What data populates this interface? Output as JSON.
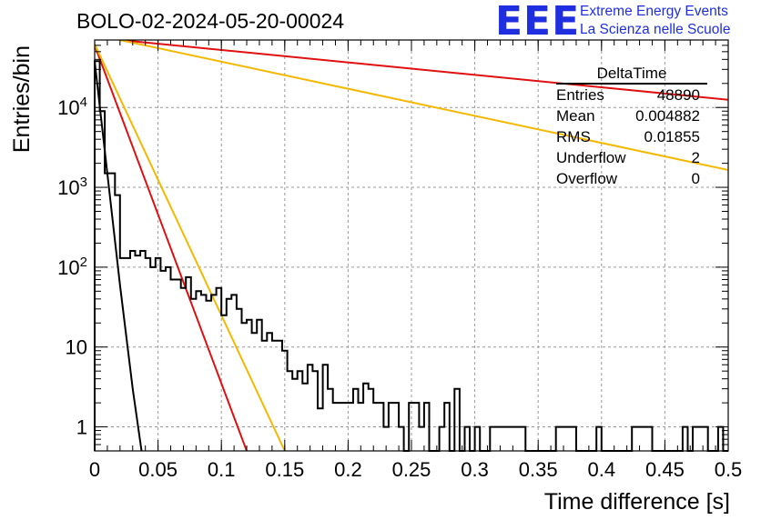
{
  "title": "BOLO-02-2024-05-20-00024",
  "logo": {
    "letters": "EEE",
    "line1": "Extreme Energy Events",
    "line2": "La Scienza nelle Scuole",
    "color": "#1f2fe0"
  },
  "stats_box": {
    "name": "DeltaTime",
    "rows": [
      {
        "label": "Entries",
        "value": "48890"
      },
      {
        "label": "Mean",
        "value": "0.004882"
      },
      {
        "label": "RMS",
        "value": "0.01855"
      },
      {
        "label": "Underflow",
        "value": "2"
      },
      {
        "label": "Overflow",
        "value": "0"
      }
    ]
  },
  "chart_data": {
    "type": "histogram",
    "title": "BOLO-02-2024-05-20-00024",
    "xlabel": "Time difference [s]",
    "ylabel": "Entries/bin",
    "xlim": [
      0,
      0.5
    ],
    "ylim": [
      0.5,
      70000
    ],
    "y_scale": "log",
    "grid": true,
    "x_ticks": [
      "0",
      "0.05",
      "0.1",
      "0.15",
      "0.2",
      "0.25",
      "0.3",
      "0.35",
      "0.4",
      "0.45",
      "0.5"
    ],
    "y_ticks": [
      {
        "value": 1,
        "label": "1"
      },
      {
        "value": 10,
        "label": "10"
      },
      {
        "value": 100,
        "label": "10^2"
      },
      {
        "value": 1000,
        "label": "10^3"
      },
      {
        "value": 10000,
        "label": "10^4"
      }
    ],
    "bin_width": 0.004,
    "histogram_values": [
      38000,
      9000,
      1500,
      1500,
      800,
      130,
      130,
      160,
      140,
      160,
      130,
      100,
      130,
      90,
      100,
      70,
      70,
      55,
      75,
      40,
      50,
      45,
      38,
      45,
      55,
      25,
      40,
      45,
      30,
      20,
      22,
      15,
      22,
      12,
      15,
      12,
      12,
      9,
      5,
      4,
      5,
      3.5,
      6,
      5,
      1.7,
      6,
      3,
      2,
      2,
      2,
      2,
      3,
      2,
      3.5,
      3,
      2,
      2,
      1,
      2,
      2,
      1,
      0.1,
      2,
      2,
      1,
      2,
      0.1,
      0.1,
      1,
      2,
      0.1,
      3,
      0.1,
      1,
      0.1,
      1,
      0.1,
      0.1,
      1,
      1,
      1,
      1,
      1,
      1,
      1,
      0.1,
      0.1,
      0.1,
      0.1,
      0.1,
      0.1,
      1,
      1,
      1,
      1,
      0.1,
      0.1,
      0.1,
      0.1,
      1,
      0.1,
      0.1,
      0.1,
      0.1,
      0.1,
      0.1,
      1,
      1,
      1,
      1,
      0.1,
      0.1,
      0.1,
      0.1,
      0.1,
      0.1,
      1,
      0.1,
      1,
      1,
      1,
      0.1,
      0.1,
      1,
      0.1
    ],
    "fit_curves": [
      {
        "color": "#000000",
        "points": [
          [
            0.0,
            38000
          ],
          [
            0.01,
            1500
          ],
          [
            0.02,
            60
          ],
          [
            0.03,
            3
          ],
          [
            0.037,
            0.5
          ]
        ]
      },
      {
        "color": "#e01010",
        "points": [
          [
            0.0,
            60000
          ],
          [
            0.12,
            0.5
          ]
        ]
      },
      {
        "color": "#f5b800",
        "points": [
          [
            0.0,
            62000
          ],
          [
            0.15,
            0.5
          ]
        ]
      },
      {
        "color": "#e01010",
        "points": [
          [
            0.02,
            70000
          ],
          [
            0.5,
            12500
          ]
        ]
      },
      {
        "color": "#f5b800",
        "points": [
          [
            0.02,
            70000
          ],
          [
            0.5,
            1650
          ]
        ]
      }
    ]
  }
}
